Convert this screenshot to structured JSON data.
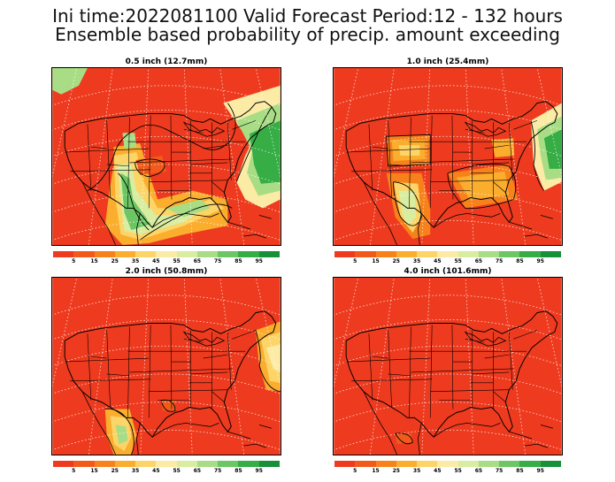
{
  "title": {
    "line1": "Ini time:2022081100  Valid Forecast Period:12 - 132 hours",
    "line2": "Ensemble based probability of precip. amount exceeding"
  },
  "panels": [
    {
      "id": "p1",
      "label": "0.5 inch (12.7mm)"
    },
    {
      "id": "p2",
      "label": "1.0 inch (25.4mm)"
    },
    {
      "id": "p3",
      "label": "2.0 inch (50.8mm)"
    },
    {
      "id": "p4",
      "label": "4.0 inch (101.6mm)"
    }
  ],
  "colorbar": {
    "colors": [
      "#ee3b1f",
      "#f25a1c",
      "#f7821c",
      "#fbad2e",
      "#fcd467",
      "#fbeba4",
      "#d9eda0",
      "#a8dd85",
      "#6cc663",
      "#36ad45",
      "#17903a"
    ],
    "ticks": [
      "5",
      "15",
      "25",
      "35",
      "45",
      "55",
      "65",
      "75",
      "85",
      "95"
    ]
  }
}
